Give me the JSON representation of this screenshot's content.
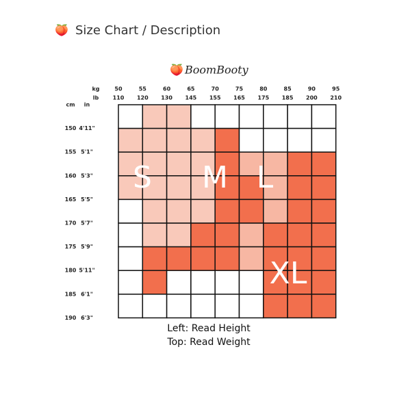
{
  "header": {
    "icon": "🍑",
    "title": "Size Chart / Description"
  },
  "logo": {
    "icon": "🍑",
    "text": "BoomBooty"
  },
  "grid": {
    "weight_units": [
      "kg",
      "lb"
    ],
    "height_units": [
      "cm",
      "in"
    ],
    "kg": [
      "50",
      "55",
      "60",
      "65",
      "70",
      "75",
      "80",
      "85",
      "90",
      "95"
    ],
    "lb": [
      "110",
      "120",
      "130",
      "145",
      "155",
      "165",
      "175",
      "185",
      "200",
      "210"
    ],
    "cm": [
      "150",
      "155",
      "160",
      "165",
      "170",
      "175",
      "180",
      "185",
      "190"
    ],
    "in": [
      "4'11\"",
      "5'1\"",
      "5'3\"",
      "5'5\"",
      "5'7\"",
      "5'9\"",
      "5'11\"",
      "6'1\"",
      "6'3\""
    ],
    "sizes": [
      "S",
      "M",
      "L",
      "XL"
    ]
  },
  "notes": [
    "Left: Read Height",
    "Top: Read Weight"
  ]
}
